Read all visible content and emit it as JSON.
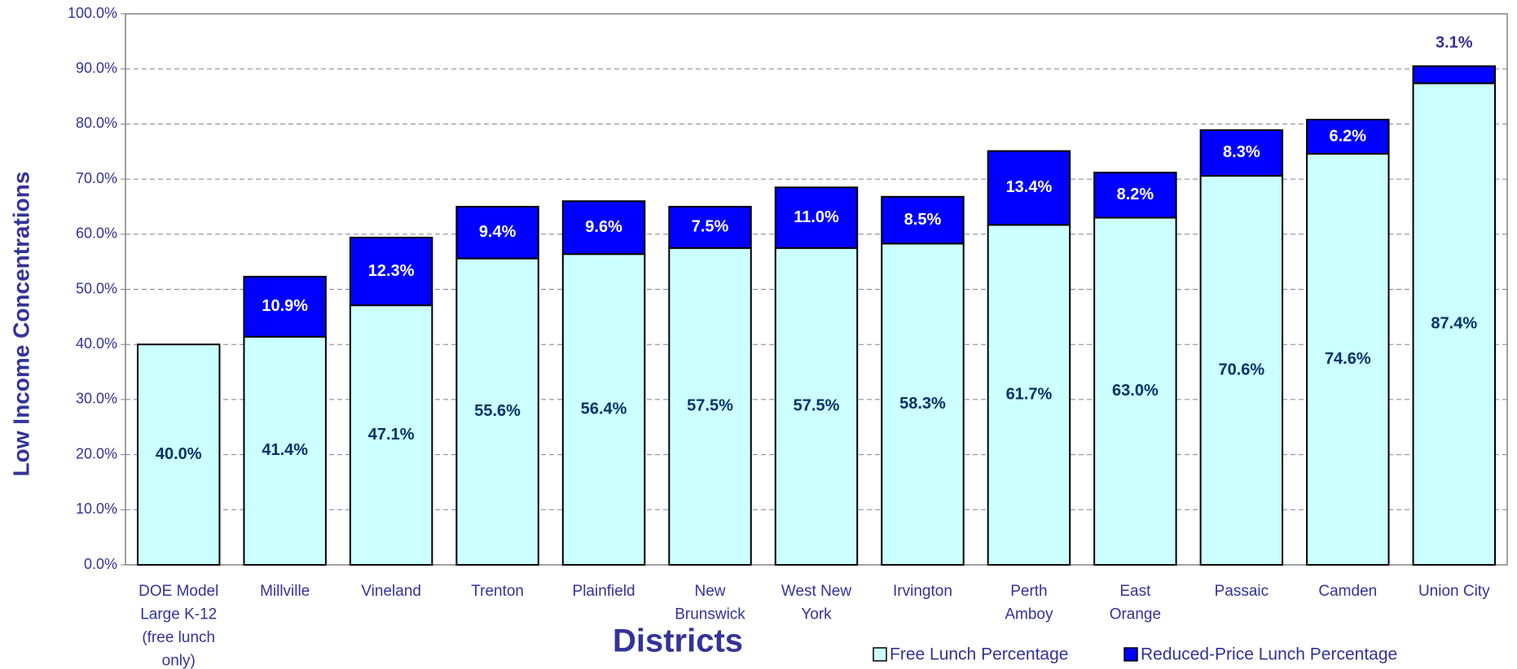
{
  "chart_data": {
    "type": "stacked_bar",
    "x_label": "Districts",
    "y_label": "Low Income Concentrations",
    "categories": [
      [
        "DOE Model",
        "Large K-12",
        "(free lunch",
        "only)"
      ],
      [
        "Millville"
      ],
      [
        "Vineland"
      ],
      [
        "Trenton"
      ],
      [
        "Plainfield"
      ],
      [
        "New",
        "Brunswick"
      ],
      [
        "West New",
        "York"
      ],
      [
        "Irvington"
      ],
      [
        "Perth",
        "Amboy"
      ],
      [
        "East",
        "Orange"
      ],
      [
        "Passaic"
      ],
      [
        "Camden"
      ],
      [
        "Union City"
      ]
    ],
    "series": [
      {
        "name": "Free Lunch Percentage",
        "color": "#ccffff",
        "label_color": "#003366",
        "values": [
          40.0,
          41.4,
          47.1,
          55.6,
          56.4,
          57.5,
          57.5,
          58.3,
          61.7,
          63.0,
          70.6,
          74.6,
          87.4
        ],
        "value_labels": [
          "40.0%",
          "41.4%",
          "47.1%",
          "55.6%",
          "56.4%",
          "57.5%",
          "57.5%",
          "58.3%",
          "61.7%",
          "63.0%",
          "70.6%",
          "74.6%",
          "87.4%"
        ]
      },
      {
        "name": "Reduced-Price Lunch Percentage",
        "color": "#0000ff",
        "label_color": "#ffffff",
        "values": [
          null,
          10.9,
          12.3,
          9.4,
          9.6,
          7.5,
          11.0,
          8.5,
          13.4,
          8.2,
          8.3,
          6.2,
          3.1
        ],
        "value_labels": [
          null,
          "10.9%",
          "12.3%",
          "9.4%",
          "9.6%",
          "7.5%",
          "11.0%",
          "8.5%",
          "13.4%",
          "8.2%",
          "8.3%",
          "6.2%",
          "3.1%"
        ]
      }
    ],
    "ylim": [
      0,
      100
    ],
    "yticks": [
      {
        "value": 0,
        "label": "0.0%"
      },
      {
        "value": 10,
        "label": "10.0%"
      },
      {
        "value": 20,
        "label": "20.0%"
      },
      {
        "value": 30,
        "label": "30.0%"
      },
      {
        "value": 40,
        "label": "40.0%"
      },
      {
        "value": 50,
        "label": "50.0%"
      },
      {
        "value": 60,
        "label": "60.0%"
      },
      {
        "value": 70,
        "label": "70.0%"
      },
      {
        "value": 80,
        "label": "80.0%"
      },
      {
        "value": 90,
        "label": "90.0%"
      },
      {
        "value": 100,
        "label": "100.0%"
      }
    ],
    "grid": true,
    "legend": "bottom-right"
  }
}
